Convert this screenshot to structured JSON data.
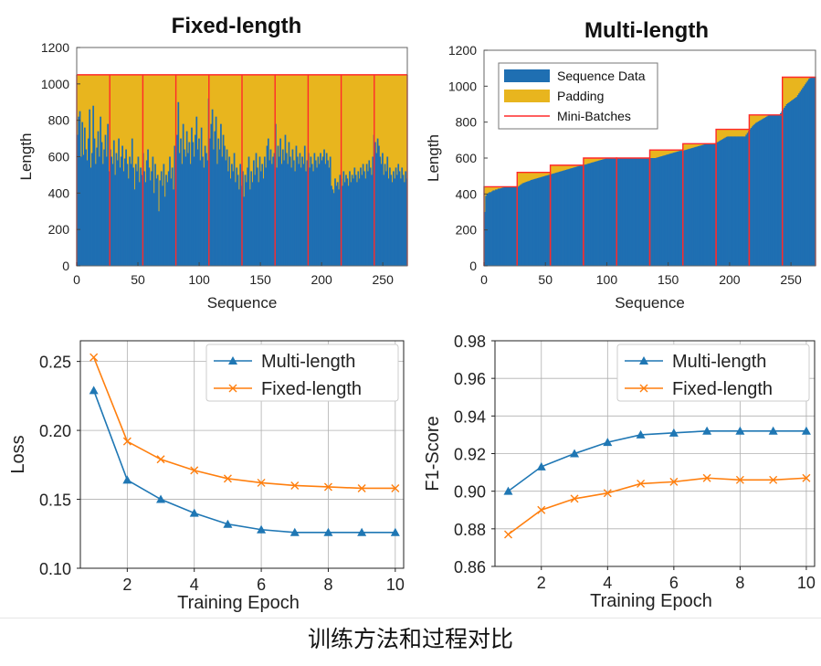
{
  "caption": "训练方法和过程对比",
  "chart_data": [
    {
      "id": "fixed",
      "type": "bar",
      "title": "Fixed-length",
      "xlabel": "Sequence",
      "ylabel": "Length",
      "xlim": [
        0,
        270
      ],
      "ylim": [
        0,
        1200
      ],
      "xticks": [
        0,
        50,
        100,
        150,
        200,
        250
      ],
      "yticks": [
        0,
        200,
        400,
        600,
        800,
        1000,
        1200
      ],
      "padded_length": 1050,
      "batch_boundaries": [
        0,
        27,
        54,
        81,
        108,
        135,
        162,
        189,
        216,
        243,
        270
      ],
      "sequence_lengths": [
        720,
        820,
        850,
        600,
        790,
        610,
        760,
        640,
        580,
        700,
        860,
        540,
        620,
        880,
        700,
        560,
        650,
        740,
        600,
        820,
        680,
        560,
        640,
        720,
        600,
        780,
        520,
        640,
        600,
        560,
        690,
        500,
        620,
        580,
        700,
        540,
        600,
        660,
        520,
        590,
        640,
        560,
        480,
        600,
        560,
        700,
        540,
        420,
        560,
        520,
        600,
        460,
        540,
        500,
        620,
        520,
        460,
        580,
        640,
        540,
        470,
        520,
        600,
        400,
        560,
        480,
        500,
        300,
        470,
        520,
        440,
        560,
        380,
        500,
        460,
        520,
        600,
        480,
        540,
        420,
        660,
        580,
        720,
        900,
        620,
        700,
        560,
        780,
        640,
        600,
        740,
        620,
        680,
        560,
        760,
        680,
        600,
        720,
        820,
        640,
        700,
        580,
        760,
        600,
        540,
        660,
        620,
        580,
        920,
        700,
        780,
        860,
        640,
        740,
        820,
        560,
        700,
        640,
        780,
        600,
        720,
        660,
        580,
        640,
        520,
        600,
        480,
        560,
        520,
        620,
        460,
        540,
        500,
        420,
        560,
        440,
        520,
        380,
        500,
        460,
        540,
        600,
        420,
        520,
        460,
        580,
        500,
        620,
        540,
        460,
        600,
        520,
        560,
        480,
        600,
        540,
        660,
        700,
        580,
        640,
        560,
        600,
        620,
        780,
        540,
        660,
        600,
        700,
        560,
        640,
        580,
        720,
        620,
        560,
        680,
        600,
        540,
        640,
        580,
        520,
        660,
        600,
        560,
        620,
        540,
        600,
        560,
        660,
        520,
        580,
        620,
        540,
        600,
        560,
        520,
        620,
        580,
        540,
        600,
        560,
        620,
        580,
        600,
        640,
        560,
        620,
        580,
        540,
        600,
        440,
        420,
        400,
        480,
        440,
        460,
        420,
        500,
        480,
        440,
        520,
        460,
        500,
        480,
        440,
        520,
        460,
        500,
        480,
        540,
        500,
        460,
        520,
        480,
        540,
        500,
        560,
        520,
        480,
        560,
        520,
        580,
        540,
        500,
        600,
        720,
        680,
        620,
        700,
        660,
        600,
        560,
        620,
        500,
        560,
        520,
        600,
        480,
        540,
        500,
        460,
        520,
        480,
        540,
        500,
        560,
        520,
        480,
        540,
        500,
        460,
        520,
        480
      ]
    },
    {
      "id": "multi",
      "type": "bar",
      "title": "Multi-length",
      "xlabel": "Sequence",
      "ylabel": "Length",
      "xlim": [
        0,
        270
      ],
      "ylim": [
        0,
        1200
      ],
      "xticks": [
        0,
        50,
        100,
        150,
        200,
        250
      ],
      "yticks": [
        0,
        200,
        400,
        600,
        800,
        1000,
        1200
      ],
      "legend": [
        "Sequence Data",
        "Padding",
        "Mini-Batches"
      ],
      "legend_position": "top-left",
      "batches": [
        {
          "start": 0,
          "end": 27,
          "pad": 440
        },
        {
          "start": 27,
          "end": 54,
          "pad": 520
        },
        {
          "start": 54,
          "end": 81,
          "pad": 560
        },
        {
          "start": 81,
          "end": 108,
          "pad": 600
        },
        {
          "start": 108,
          "end": 135,
          "pad": 600
        },
        {
          "start": 135,
          "end": 162,
          "pad": 645
        },
        {
          "start": 162,
          "end": 189,
          "pad": 680
        },
        {
          "start": 189,
          "end": 216,
          "pad": 760
        },
        {
          "start": 216,
          "end": 243,
          "pad": 840
        },
        {
          "start": 243,
          "end": 270,
          "pad": 1050
        }
      ],
      "sequence_lengths": [
        300,
        390,
        400,
        405,
        410,
        410,
        415,
        420,
        420,
        425,
        425,
        430,
        430,
        432,
        434,
        436,
        438,
        440,
        440,
        440,
        440,
        440,
        440,
        440,
        440,
        440,
        440,
        440,
        445,
        450,
        455,
        460,
        462,
        465,
        468,
        470,
        472,
        475,
        478,
        480,
        482,
        484,
        486,
        488,
        490,
        492,
        494,
        496,
        498,
        500,
        502,
        504,
        506,
        508,
        510,
        512,
        514,
        516,
        518,
        520,
        522,
        524,
        526,
        528,
        530,
        532,
        534,
        536,
        538,
        540,
        542,
        544,
        546,
        548,
        550,
        552,
        554,
        556,
        558,
        560,
        560,
        562,
        564,
        566,
        568,
        570,
        572,
        574,
        576,
        578,
        580,
        582,
        584,
        586,
        588,
        590,
        592,
        594,
        596,
        598,
        600,
        600,
        600,
        600,
        600,
        600,
        600,
        600,
        600,
        600,
        600,
        600,
        600,
        600,
        600,
        600,
        600,
        600,
        600,
        600,
        600,
        600,
        600,
        600,
        600,
        600,
        600,
        600,
        600,
        600,
        600,
        600,
        600,
        600,
        600,
        600,
        600,
        600,
        600,
        600,
        602,
        604,
        606,
        608,
        610,
        612,
        614,
        616,
        618,
        620,
        622,
        624,
        626,
        628,
        630,
        632,
        634,
        636,
        638,
        640,
        640,
        640,
        642,
        644,
        646,
        648,
        650,
        652,
        654,
        656,
        658,
        660,
        662,
        664,
        666,
        668,
        670,
        672,
        674,
        676,
        678,
        680,
        680,
        680,
        680,
        680,
        680,
        680,
        682,
        686,
        690,
        694,
        698,
        702,
        706,
        710,
        714,
        718,
        720,
        720,
        720,
        720,
        720,
        720,
        720,
        720,
        720,
        720,
        720,
        720,
        720,
        720,
        720,
        730,
        740,
        750,
        760,
        768,
        776,
        784,
        790,
        796,
        800,
        804,
        808,
        812,
        816,
        820,
        824,
        828,
        832,
        836,
        840,
        840,
        840,
        840,
        840,
        840,
        840,
        840,
        840,
        850,
        860,
        870,
        880,
        890,
        900,
        905,
        910,
        915,
        920,
        925,
        930,
        935,
        940,
        950,
        960,
        970,
        980,
        990,
        1000,
        1010,
        1020,
        1030,
        1040,
        1045,
        1050,
        1050,
        1050,
        1050
      ],
      "bar_range": [
        0,
        270
      ]
    },
    {
      "id": "loss",
      "type": "line",
      "xlabel": "Training Epoch",
      "ylabel": "Loss",
      "xlim": [
        0.6,
        10.25
      ],
      "ylim": [
        0.1,
        0.265
      ],
      "xticks": [
        2,
        4,
        6,
        8,
        10
      ],
      "yticks": [
        0.1,
        0.15,
        0.2,
        0.25
      ],
      "ytick_labels": [
        "0.10",
        "0.15",
        "0.20",
        "0.25"
      ],
      "grid": true,
      "legend_position": "top-right",
      "x": [
        1,
        2,
        3,
        4,
        5,
        6,
        7,
        8,
        9,
        10
      ],
      "series": [
        {
          "name": "Multi-length",
          "color": "#1f77b4",
          "marker": "triangle",
          "values": [
            0.229,
            0.164,
            0.15,
            0.14,
            0.132,
            0.128,
            0.126,
            0.126,
            0.126,
            0.126
          ]
        },
        {
          "name": "Fixed-length",
          "color": "#ff7f0e",
          "marker": "x",
          "values": [
            0.253,
            0.192,
            0.179,
            0.171,
            0.165,
            0.162,
            0.16,
            0.159,
            0.158,
            0.158
          ]
        }
      ]
    },
    {
      "id": "f1",
      "type": "line",
      "xlabel": "Training Epoch",
      "ylabel": "F1-Score",
      "xlim": [
        0.6,
        10.25
      ],
      "ylim": [
        0.86,
        0.98
      ],
      "xticks": [
        2,
        4,
        6,
        8,
        10
      ],
      "yticks": [
        0.86,
        0.88,
        0.9,
        0.92,
        0.94,
        0.96,
        0.98
      ],
      "ytick_labels": [
        "0.86",
        "0.88",
        "0.90",
        "0.92",
        "0.94",
        "0.96",
        "0.98"
      ],
      "grid": true,
      "legend_position": "top-right",
      "x": [
        1,
        2,
        3,
        4,
        5,
        6,
        7,
        8,
        9,
        10
      ],
      "series": [
        {
          "name": "Multi-length",
          "color": "#1f77b4",
          "marker": "triangle",
          "values": [
            0.9,
            0.913,
            0.92,
            0.926,
            0.93,
            0.931,
            0.932,
            0.932,
            0.932,
            0.932
          ]
        },
        {
          "name": "Fixed-length",
          "color": "#ff7f0e",
          "marker": "x",
          "values": [
            0.877,
            0.89,
            0.896,
            0.899,
            0.904,
            0.905,
            0.907,
            0.906,
            0.906,
            0.907
          ]
        }
      ]
    }
  ],
  "colors": {
    "sequence": "#1f6fb2",
    "padding": "#e8b51e",
    "minibatch": "#ff2a2a",
    "axis": "#333333",
    "grid": "#b0b0b0"
  }
}
